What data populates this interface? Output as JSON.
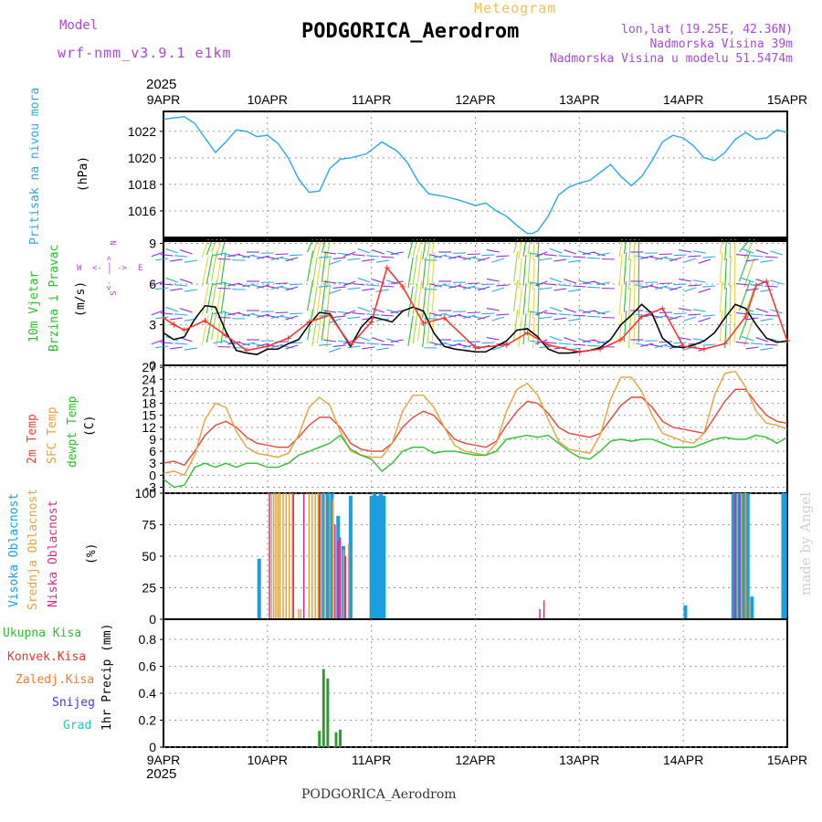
{
  "header": {
    "model_label": "Model",
    "model_name": "wrf-nmm_v3.9.1  e1km",
    "station": "PODGORICA_Aerodrom",
    "product": "Meteogram",
    "lonlat": "lon,lat (19.25E, 42.36N)",
    "elevation": "Nadmorska Visina 39m",
    "model_elevation": "Nadmorska Visina u modelu 51.5474m"
  },
  "footer": {
    "station": "PODGORICA_Aerodrom",
    "credit": "made by Angel"
  },
  "colors": {
    "pressure": "#29a9e0",
    "wind_speed": "#000000",
    "gust": "#ff3030",
    "t2m": "#e8443a",
    "sfc": "#e4a33a",
    "dewpt": "#2fbd2f",
    "high_cloud": "#1a9ee0",
    "mid_cloud": "#e4a33a",
    "low_cloud": "#d62a8a",
    "total_precip": "#2f9e2f",
    "conv_precip": "#e83535",
    "frz_precip": "#f07a30",
    "snow": "#3a3ad6",
    "graupel": "#27c4c4",
    "label_purple": "#a64bd6"
  },
  "time_axis": {
    "year": "2025",
    "ticks": [
      "9APR",
      "10APR",
      "11APR",
      "12APR",
      "13APR",
      "14APR",
      "15APR"
    ]
  },
  "panels": {
    "pressure": {
      "label": "Pritisak na nivou mora",
      "unit": "(hPa)"
    },
    "wind": {
      "label1": "10m Vjetar",
      "label2": "Brzina i Pravac",
      "unit": "(m/s)",
      "compass": {
        "n": "N",
        "s": "S",
        "e": "E",
        "w": "W",
        "arrows_ns": "<- - ->",
        "arrows_ew": "<- | ->"
      }
    },
    "temperature": {
      "label1": "2m Temp",
      "label2": "SFC Temp",
      "label3": "dewpt Temp",
      "unit": "(C)"
    },
    "clouds": {
      "label1": "Visoka Oblacnost",
      "label2": "Srednja Oblacnost",
      "label3": "Niska Oblacnost",
      "unit": "(%)"
    },
    "precip": {
      "legend": [
        "Ukupna Kisa",
        "Konvek.Kisa",
        "Zaledj.Kisa",
        "Snijeg",
        "Grad"
      ],
      "ylabel": "1hr Precip (mm)"
    }
  },
  "chart_data": [
    {
      "type": "line",
      "title": "Pritisak na nivou mora",
      "ylabel": "(hPa)",
      "ylim": [
        1014,
        1023.5
      ],
      "yticks": [
        1016,
        1018,
        1020,
        1022
      ],
      "xlim": [
        0,
        6
      ],
      "grid": true,
      "series": [
        {
          "name": "Pritisak na nivou mora",
          "x": [
            0,
            0.08,
            0.2,
            0.3,
            0.4,
            0.5,
            0.6,
            0.7,
            0.8,
            0.9,
            1.0,
            1.1,
            1.2,
            1.3,
            1.4,
            1.5,
            1.6,
            1.7,
            1.8,
            1.95,
            2.1,
            2.25,
            2.35,
            2.45,
            2.55,
            2.7,
            2.85,
            3.0,
            3.1,
            3.2,
            3.3,
            3.4,
            3.5,
            3.55,
            3.6,
            3.7,
            3.8,
            3.9,
            4.0,
            4.1,
            4.2,
            4.3,
            4.4,
            4.5,
            4.6,
            4.7,
            4.8,
            4.9,
            5.0,
            5.1,
            5.2,
            5.3,
            5.4,
            5.5,
            5.6,
            5.7,
            5.8,
            5.9,
            6.0
          ],
          "y": [
            1022.9,
            1023.0,
            1023.1,
            1022.6,
            1021.5,
            1020.4,
            1021.2,
            1022.1,
            1022.0,
            1021.6,
            1021.7,
            1021.1,
            1020.0,
            1018.4,
            1017.4,
            1017.5,
            1019.2,
            1019.9,
            1020.0,
            1020.3,
            1021.2,
            1020.5,
            1019.6,
            1018.2,
            1017.3,
            1017.1,
            1016.8,
            1016.4,
            1016.6,
            1016.0,
            1015.6,
            1014.9,
            1014.3,
            1014.3,
            1014.5,
            1015.6,
            1017.2,
            1017.8,
            1018.1,
            1018.3,
            1018.9,
            1019.5,
            1018.6,
            1017.9,
            1018.6,
            1019.8,
            1021.2,
            1021.7,
            1021.5,
            1020.9,
            1020.0,
            1019.8,
            1020.4,
            1021.4,
            1021.9,
            1021.4,
            1021.5,
            1022.1,
            1021.9
          ]
        }
      ]
    },
    {
      "type": "line",
      "title": "10m Vjetar Brzina i Pravac",
      "ylabel": "(m/s)",
      "ylim": [
        0,
        9.3
      ],
      "yticks": [
        0,
        3,
        6,
        9
      ],
      "xlim": [
        0,
        6
      ],
      "grid": true,
      "series": [
        {
          "name": "wind speed",
          "x": [
            0,
            0.1,
            0.2,
            0.3,
            0.4,
            0.5,
            0.6,
            0.7,
            0.8,
            0.9,
            1.0,
            1.1,
            1.2,
            1.3,
            1.4,
            1.5,
            1.6,
            1.7,
            1.8,
            1.9,
            2.0,
            2.1,
            2.2,
            2.3,
            2.4,
            2.5,
            2.6,
            2.7,
            2.8,
            2.9,
            3.0,
            3.1,
            3.2,
            3.3,
            3.4,
            3.5,
            3.6,
            3.7,
            3.8,
            3.9,
            4.0,
            4.1,
            4.2,
            4.3,
            4.4,
            4.5,
            4.6,
            4.7,
            4.8,
            4.9,
            5.0,
            5.1,
            5.2,
            5.3,
            5.4,
            5.5,
            5.6,
            5.7,
            5.8,
            5.9,
            6.0
          ],
          "y": [
            2.4,
            1.9,
            2.1,
            3.4,
            4.4,
            4.3,
            2.5,
            1.1,
            0.9,
            0.8,
            1.2,
            1.2,
            1.6,
            1.9,
            3.0,
            3.9,
            3.8,
            2.6,
            1.4,
            2.8,
            3.6,
            3.4,
            3.2,
            4.0,
            4.3,
            4.0,
            2.4,
            1.4,
            1.2,
            1.1,
            1.0,
            1.0,
            1.4,
            1.8,
            2.6,
            2.7,
            2.1,
            1.2,
            0.9,
            0.9,
            1.0,
            1.1,
            1.3,
            1.9,
            3.0,
            3.7,
            4.5,
            3.8,
            2.0,
            1.4,
            1.3,
            1.5,
            1.8,
            2.4,
            3.5,
            4.5,
            4.2,
            3.0,
            2.0,
            1.7,
            1.8
          ]
        },
        {
          "name": "gust",
          "x": [
            0,
            0.1,
            0.2,
            0.4,
            0.6,
            0.8,
            1.0,
            1.2,
            1.4,
            1.6,
            1.8,
            2.0,
            2.15,
            2.3,
            2.5,
            2.7,
            3.0,
            3.3,
            3.5,
            3.7,
            4.0,
            4.2,
            4.4,
            4.6,
            4.8,
            5.0,
            5.2,
            5.4,
            5.6,
            5.7,
            5.8,
            6.0
          ],
          "y": [
            3.5,
            3.0,
            2.6,
            3.3,
            2.2,
            1.1,
            1.4,
            2.0,
            3.2,
            3.7,
            1.5,
            3.2,
            7.2,
            5.8,
            3.1,
            3.5,
            1.3,
            1.5,
            2.4,
            1.5,
            1.0,
            1.2,
            1.9,
            3.6,
            4.2,
            1.4,
            1.2,
            1.6,
            3.6,
            5.9,
            6.2,
            1.8
          ]
        }
      ]
    },
    {
      "type": "line",
      "title": "2m Temp / SFC Temp / dewpt Temp",
      "ylabel": "(C)",
      "ylim": [
        -4.5,
        27.5
      ],
      "yticks": [
        -3,
        0,
        3,
        6,
        9,
        12,
        15,
        18,
        21,
        24,
        27
      ],
      "xlim": [
        0,
        6
      ],
      "grid": true,
      "series": [
        {
          "name": "2m Temp",
          "x": [
            0,
            0.1,
            0.2,
            0.3,
            0.4,
            0.5,
            0.6,
            0.7,
            0.8,
            0.9,
            1.0,
            1.1,
            1.2,
            1.3,
            1.4,
            1.5,
            1.6,
            1.7,
            1.8,
            1.9,
            2.0,
            2.1,
            2.2,
            2.3,
            2.4,
            2.5,
            2.6,
            2.7,
            2.8,
            2.9,
            3.0,
            3.1,
            3.2,
            3.3,
            3.4,
            3.5,
            3.6,
            3.7,
            3.8,
            3.9,
            4.0,
            4.1,
            4.2,
            4.3,
            4.4,
            4.5,
            4.6,
            4.7,
            4.8,
            4.9,
            5.0,
            5.1,
            5.2,
            5.3,
            5.4,
            5.5,
            5.6,
            5.7,
            5.8,
            5.9,
            6.0
          ],
          "y": [
            3,
            3.5,
            2.5,
            6,
            10,
            12.5,
            13.5,
            12,
            9.5,
            8,
            7.5,
            7,
            7,
            9.5,
            12.5,
            14.5,
            14.5,
            12,
            8,
            6.5,
            6,
            6,
            8,
            12,
            14.5,
            16,
            15,
            12,
            9,
            8,
            7.5,
            7,
            8.5,
            12.5,
            16,
            18.5,
            18,
            15.5,
            12,
            10.5,
            10,
            9.5,
            10.5,
            14,
            17.5,
            19.5,
            19.5,
            17,
            13.5,
            12,
            11.5,
            11,
            10.5,
            14.5,
            18.5,
            21.5,
            21.5,
            18,
            15,
            13.5,
            13
          ]
        },
        {
          "name": "SFC Temp",
          "x": [
            0,
            0.1,
            0.2,
            0.3,
            0.4,
            0.5,
            0.6,
            0.7,
            0.8,
            0.9,
            1.0,
            1.1,
            1.2,
            1.3,
            1.4,
            1.5,
            1.6,
            1.7,
            1.8,
            1.9,
            2.0,
            2.1,
            2.2,
            2.3,
            2.4,
            2.5,
            2.6,
            2.7,
            2.8,
            2.9,
            3.0,
            3.1,
            3.2,
            3.3,
            3.4,
            3.5,
            3.6,
            3.7,
            3.8,
            3.9,
            4.0,
            4.1,
            4.2,
            4.3,
            4.4,
            4.5,
            4.6,
            4.7,
            4.8,
            4.9,
            5.0,
            5.1,
            5.2,
            5.3,
            5.4,
            5.5,
            5.6,
            5.7,
            5.8,
            5.9,
            6.0
          ],
          "y": [
            0.5,
            1,
            0,
            5,
            14,
            18,
            17,
            11,
            7,
            5.5,
            5,
            4.5,
            5.5,
            10,
            17,
            19.5,
            17.5,
            11,
            6,
            5,
            4.5,
            4.5,
            8,
            16,
            20,
            20,
            17,
            12,
            7.5,
            6,
            5.5,
            5,
            8,
            16,
            21.5,
            23,
            20,
            14,
            8.5,
            6.5,
            6,
            5.5,
            10,
            19,
            24.5,
            24.5,
            21,
            15,
            10.5,
            9.5,
            8.5,
            8,
            10.5,
            20,
            25.5,
            26,
            22,
            16,
            13,
            12.5,
            11.5
          ]
        },
        {
          "name": "dewpt Temp",
          "x": [
            0,
            0.1,
            0.2,
            0.3,
            0.4,
            0.5,
            0.6,
            0.7,
            0.8,
            0.9,
            1.0,
            1.1,
            1.2,
            1.3,
            1.4,
            1.5,
            1.6,
            1.7,
            1.8,
            1.9,
            2.0,
            2.1,
            2.2,
            2.3,
            2.4,
            2.5,
            2.6,
            2.7,
            2.8,
            2.9,
            3.0,
            3.1,
            3.2,
            3.3,
            3.4,
            3.5,
            3.6,
            3.7,
            3.8,
            3.9,
            4.0,
            4.1,
            4.2,
            4.3,
            4.4,
            4.5,
            4.6,
            4.7,
            4.8,
            4.9,
            5.0,
            5.1,
            5.2,
            5.3,
            5.4,
            5.5,
            5.6,
            5.7,
            5.8,
            5.9,
            6.0
          ],
          "y": [
            -1,
            -3,
            -2.5,
            2,
            3,
            2,
            3,
            2,
            3,
            3,
            2,
            2,
            3,
            5,
            6,
            7,
            8,
            10,
            6.5,
            5,
            4,
            1,
            3,
            6,
            7,
            7,
            5.5,
            6,
            6,
            5.5,
            5,
            5,
            6,
            9,
            9.5,
            10,
            9.5,
            10,
            8,
            6,
            4.5,
            4,
            6,
            8.5,
            9,
            8.5,
            9,
            9,
            8,
            7,
            7,
            7,
            8,
            9,
            9.5,
            9,
            9,
            10,
            9.5,
            8,
            9.5
          ]
        }
      ]
    },
    {
      "type": "bar",
      "title": "Visoka / Srednja / Niska Oblacnost",
      "ylabel": "(%)",
      "ylim": [
        0,
        100
      ],
      "yticks": [
        0,
        25,
        50,
        75,
        100
      ],
      "xlim": [
        0,
        6
      ],
      "grid": true,
      "series": [
        {
          "name": "Visoka Oblacnost",
          "x": [
            0.92,
            1.5,
            1.54,
            1.58,
            1.62,
            1.68,
            1.73,
            1.8,
            2.0,
            2.03,
            2.06,
            2.09,
            2.12,
            5.02,
            5.48,
            5.5,
            5.52,
            5.54,
            5.56,
            5.58,
            5.62,
            5.64,
            5.66,
            5.96,
            5.98
          ],
          "y": [
            48,
            100,
            100,
            100,
            100,
            82,
            58,
            98,
            98,
            100,
            98,
            100,
            98,
            11,
            100,
            100,
            100,
            100,
            100,
            100,
            100,
            8,
            18,
            100,
            100
          ]
        },
        {
          "name": "Srednja Oblacnost",
          "x": [
            1.04,
            1.06,
            1.08,
            1.1,
            1.12,
            1.15,
            1.18,
            1.21,
            1.24,
            1.3,
            1.32,
            1.4,
            1.43,
            1.46,
            1.49,
            1.51,
            1.55,
            1.6,
            1.63,
            1.7,
            1.73,
            1.78,
            5.52,
            5.56,
            5.6,
            5.64
          ],
          "y": [
            100,
            100,
            100,
            100,
            100,
            100,
            100,
            100,
            100,
            8,
            8,
            100,
            100,
            100,
            100,
            100,
            100,
            95,
            95,
            60,
            55,
            60,
            100,
            100,
            100,
            15
          ]
        },
        {
          "name": "Niska Oblacnost",
          "x": [
            1.02,
            1.25,
            1.35,
            1.5,
            1.65,
            1.68,
            1.7,
            1.75,
            3.62,
            3.66,
            5.5,
            5.54
          ],
          "y": [
            100,
            100,
            100,
            100,
            75,
            62,
            65,
            50,
            8,
            15,
            100,
            100
          ]
        }
      ]
    },
    {
      "type": "bar",
      "title": "1hr Precip",
      "ylabel": "1hr Precip (mm)",
      "ylim": [
        0,
        0.95
      ],
      "yticks": [
        0,
        0.2,
        0.4,
        0.6,
        0.8
      ],
      "xlim": [
        0,
        6
      ],
      "grid": true,
      "series": [
        {
          "name": "Ukupna Kisa",
          "x": [
            1.5,
            1.54,
            1.58,
            1.66,
            1.7
          ],
          "y": [
            0.12,
            0.58,
            0.51,
            0.11,
            0.13
          ]
        }
      ]
    }
  ]
}
